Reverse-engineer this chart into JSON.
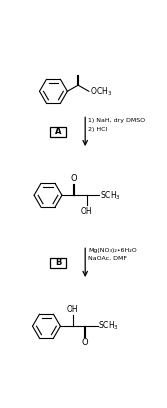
{
  "background_color": "#ffffff",
  "figsize": [
    1.67,
    4.08
  ],
  "dpi": 100,
  "step_A_label": "A",
  "step_B_label": "B",
  "reagents_A_line1": "1) NaH, dry DMSO",
  "reagents_A_line2": "2) HCl",
  "reagents_B_line1": "Mg(NO₃)₂•6H₂O",
  "reagents_B_line2": "NaOAc, DMF",
  "line_color": "#000000",
  "text_color": "#000000",
  "font_size_reagent": 4.5,
  "font_size_label": 6.0,
  "font_size_chem": 5.0,
  "font_size_group": 5.5
}
